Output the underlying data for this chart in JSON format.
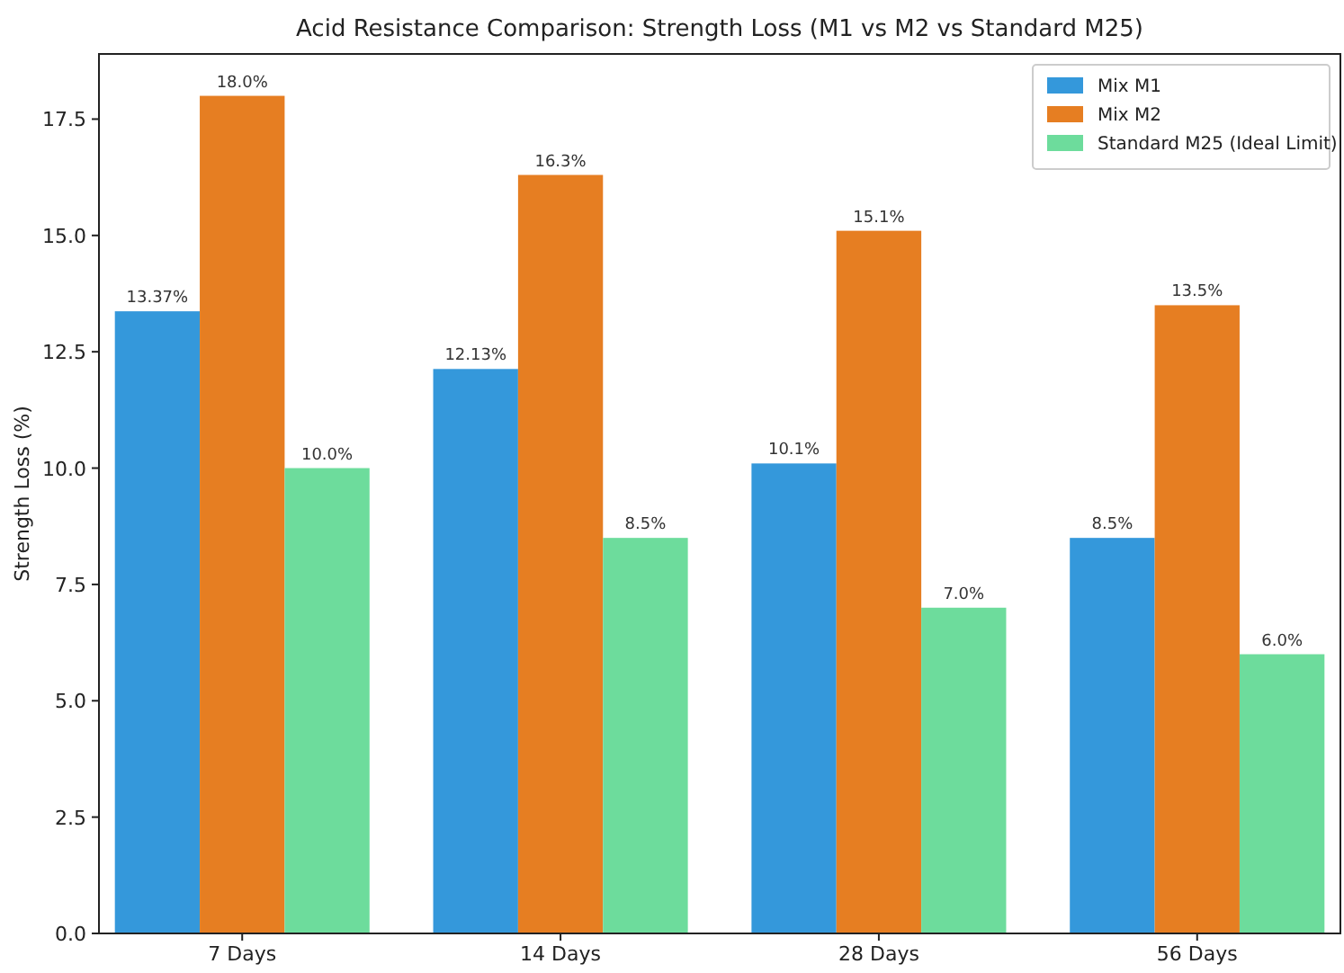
{
  "chart_data": {
    "type": "bar",
    "title": "Acid Resistance Comparison: Strength Loss (M1 vs M2 vs Standard M25)",
    "ylabel": "Strength Loss (%)",
    "categories": [
      "7 Days",
      "14 Days",
      "28 Days",
      "56 Days"
    ],
    "series": [
      {
        "name": "Mix M1",
        "color": "#3498db",
        "values": [
          13.37,
          12.13,
          10.1,
          8.5
        ],
        "value_labels": [
          "13.37%",
          "12.13%",
          "10.1%",
          "8.5%"
        ]
      },
      {
        "name": "Mix M2",
        "color": "#e67e22",
        "values": [
          18.0,
          16.3,
          15.1,
          13.5
        ],
        "value_labels": [
          "18.0%",
          "16.3%",
          "15.1%",
          "13.5%"
        ]
      },
      {
        "name": "Standard M25 (Ideal Limit)",
        "color": "#6ddc9c",
        "values": [
          10.0,
          8.5,
          7.0,
          6.0
        ],
        "value_labels": [
          "10.0%",
          "8.5%",
          "7.0%",
          "6.0%"
        ]
      }
    ],
    "ylim": [
      0,
      18.9
    ],
    "yticks": [
      {
        "value": 0,
        "label": "0.0"
      },
      {
        "value": 2.5,
        "label": "2.5"
      },
      {
        "value": 5,
        "label": "5.0"
      },
      {
        "value": 7.5,
        "label": "7.5"
      },
      {
        "value": 10,
        "label": "10.0"
      },
      {
        "value": 12.5,
        "label": "12.5"
      },
      {
        "value": 15,
        "label": "15.0"
      },
      {
        "value": 17.5,
        "label": "17.5"
      }
    ],
    "legend": "top right"
  }
}
